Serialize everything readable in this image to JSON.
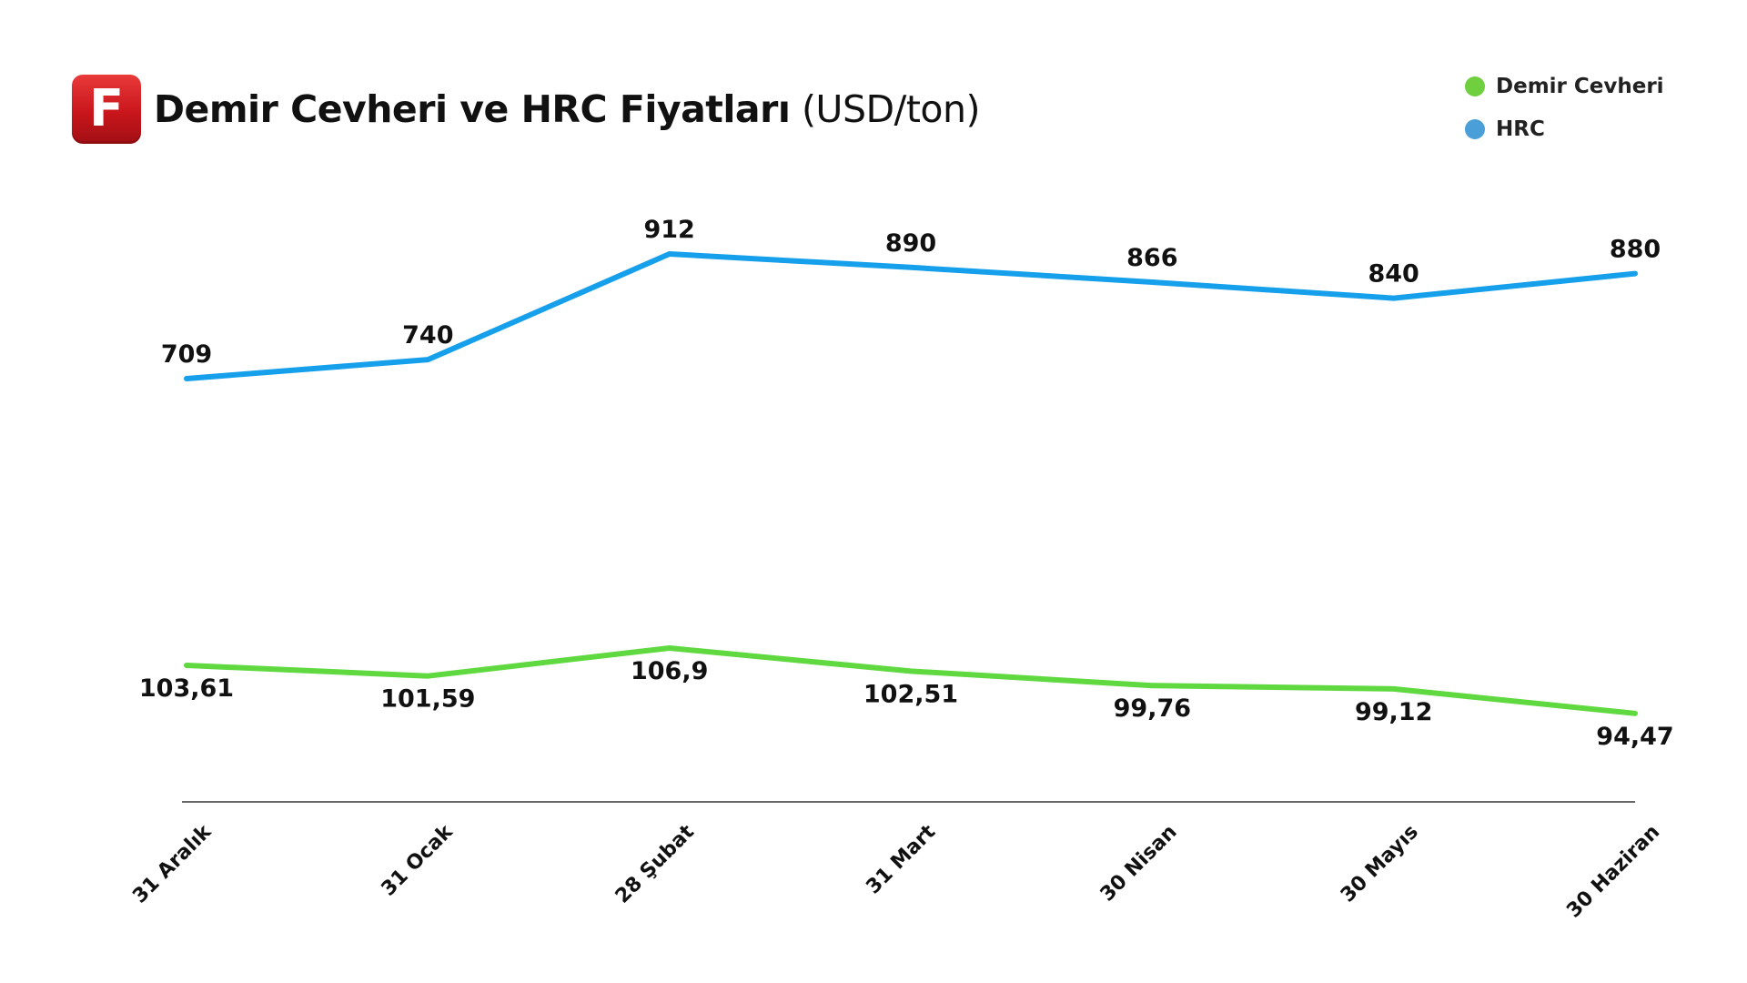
{
  "header": {
    "logo_letter": "F",
    "title": "Demir Cevheri ve HRC Fiyatları",
    "unit": "(USD/ton)"
  },
  "legend": [
    {
      "label": "Demir Cevheri",
      "color": "#6fcf3f"
    },
    {
      "label": "HRC",
      "color": "#4a9fd8"
    }
  ],
  "chart_data": {
    "type": "line",
    "title": "Demir Cevheri ve HRC Fiyatları (USD/ton)",
    "categories": [
      "31 Aralık",
      "31 Ocak",
      "28 Şubat",
      "31 Mart",
      "30 Nisan",
      "30 Mayıs",
      "30 Haziran"
    ],
    "series": [
      {
        "name": "HRC",
        "color": "#16a0ec",
        "values": [
          709,
          740,
          912,
          890,
          866,
          840,
          880
        ],
        "labels": [
          "709",
          "740",
          "912",
          "890",
          "866",
          "840",
          "880"
        ]
      },
      {
        "name": "Demir Cevheri",
        "color": "#5fd93f",
        "values": [
          103.61,
          101.59,
          106.9,
          102.51,
          99.76,
          99.12,
          94.47
        ],
        "labels": [
          "103,61",
          "101,59",
          "106,9",
          "102,51",
          "99,76",
          "99,12",
          "94,47"
        ]
      }
    ],
    "legend_position": "top-right",
    "grid": false,
    "axis_line": true,
    "x_labels_rotated": true
  }
}
